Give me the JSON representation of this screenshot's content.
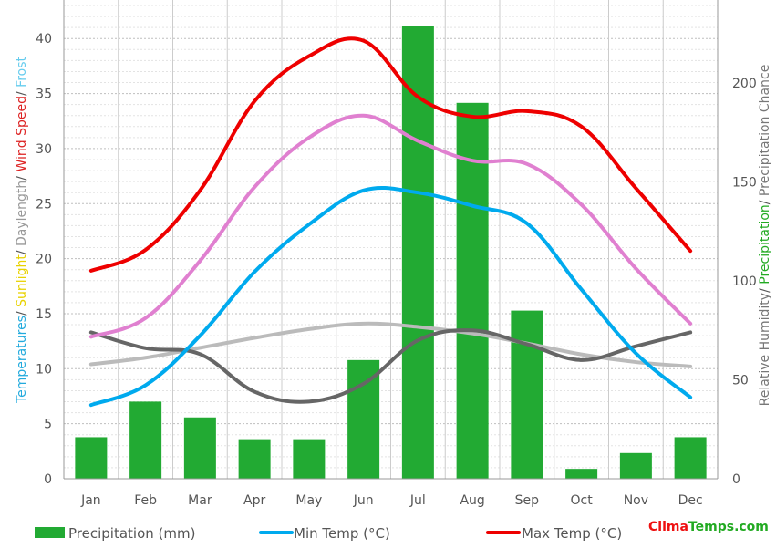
{
  "chart_data": {
    "type": "bar",
    "categories": [
      "Jan",
      "Feb",
      "Mar",
      "Apr",
      "May",
      "Jun",
      "Jul",
      "Aug",
      "Sep",
      "Oct",
      "Nov",
      "Dec"
    ],
    "left_axis": {
      "label_parts": [
        {
          "text": "Temperatures",
          "color": "#22aadd"
        },
        {
          "text": "/ ",
          "color": "#555555"
        },
        {
          "text": "Sunlight",
          "color": "#e8d200"
        },
        {
          "text": "/ ",
          "color": "#555555"
        },
        {
          "text": "Daylength",
          "color": "#999999"
        },
        {
          "text": "/ ",
          "color": "#555555"
        },
        {
          "text": "Wind Speed",
          "color": "#dd2222"
        },
        {
          "text": "/ ",
          "color": "#555555"
        },
        {
          "text": "Frost",
          "color": "#66ccee"
        }
      ],
      "ylim": [
        0,
        43.5
      ],
      "ticks": [
        0,
        5,
        10,
        15,
        20,
        25,
        30,
        35,
        40
      ]
    },
    "right_axis": {
      "label_parts": [
        {
          "text": "Relative Humidity",
          "color": "#777777"
        },
        {
          "text": "/ ",
          "color": "#555555"
        },
        {
          "text": "Precipitation",
          "color": "#22aa22"
        },
        {
          "text": "/ ",
          "color": "#555555"
        },
        {
          "text": "Precipitation Chance",
          "color": "#777777"
        }
      ],
      "ylim": [
        0,
        242
      ],
      "ticks": [
        0,
        50,
        100,
        150,
        200
      ]
    },
    "series": [
      {
        "name": "Precipitation (mm)",
        "type": "bar",
        "axis": "right",
        "color": "#22aa33",
        "values": [
          21,
          39,
          31,
          20,
          20,
          60,
          229,
          190,
          85,
          5,
          13,
          21
        ]
      },
      {
        "type": "line",
        "axis": "left",
        "color": "#bbbbbb",
        "values": [
          10.4,
          11.0,
          11.9,
          12.8,
          13.6,
          14.1,
          13.8,
          13.2,
          12.3,
          11.3,
          10.6,
          10.2
        ]
      },
      {
        "type": "line",
        "axis": "right",
        "color": "#666666",
        "values": [
          74,
          66,
          63,
          44,
          39,
          48,
          70,
          75,
          68,
          60,
          67,
          74
        ]
      },
      {
        "name": "Min Temp (°C)",
        "type": "line",
        "axis": "left",
        "color": "#00aaee",
        "values": [
          6.7,
          8.5,
          13.0,
          18.8,
          23.1,
          26.2,
          26.0,
          24.8,
          23.2,
          17.2,
          11.4,
          7.4
        ]
      },
      {
        "type": "line",
        "axis": "left",
        "color": "#e080d0",
        "values": [
          12.9,
          14.6,
          19.8,
          26.5,
          31.0,
          33.0,
          30.7,
          28.9,
          28.6,
          24.9,
          19.1,
          14.1
        ]
      },
      {
        "name": "Max Temp (°C)",
        "type": "line",
        "axis": "left",
        "color": "#ee0000",
        "values": [
          18.9,
          20.8,
          26.2,
          34.3,
          38.4,
          39.8,
          34.7,
          32.9,
          33.4,
          32.0,
          26.4,
          20.7
        ]
      }
    ]
  },
  "legend": {
    "precip_label": "Precipitation (mm)",
    "min_label": "Min Temp (°C)",
    "max_label": "Max Temp (°C)"
  },
  "brand": {
    "part1": "Clima",
    "part2": "Temps",
    "part3": ".com",
    "color1": "#ee1111",
    "color2": "#22aa22"
  }
}
